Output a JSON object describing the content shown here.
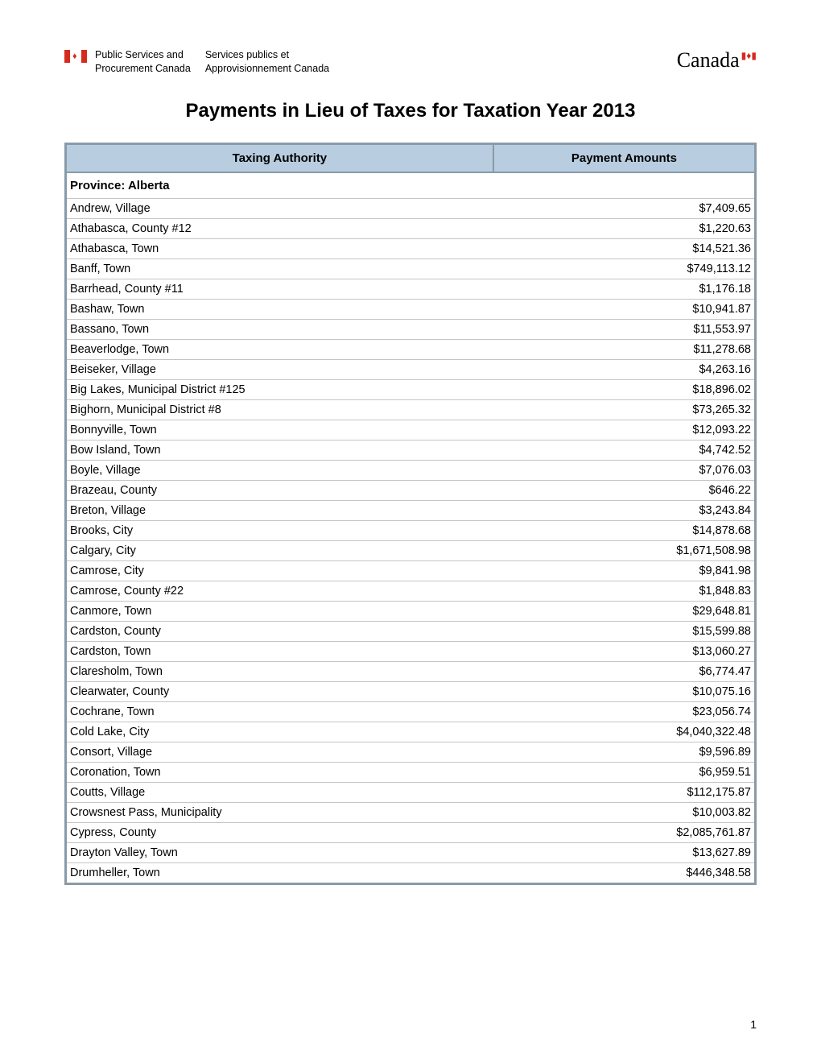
{
  "header": {
    "dept_en_line1": "Public Services and",
    "dept_en_line2": "Procurement Canada",
    "dept_fr_line1": "Services publics et",
    "dept_fr_line2": "Approvisionnement Canada",
    "wordmark": "Canada"
  },
  "title": "Payments in Lieu of Taxes for Taxation Year 2013",
  "table": {
    "columns": [
      "Taxing Authority",
      "Payment Amounts"
    ],
    "header_bg": "#b8cde0",
    "border_color": "#8a9aa8",
    "row_border_color": "#c5c5c5",
    "province_label": "Province:  Alberta",
    "rows": [
      {
        "authority": "Andrew, Village",
        "amount": "$7,409.65"
      },
      {
        "authority": "Athabasca, County #12",
        "amount": "$1,220.63"
      },
      {
        "authority": "Athabasca, Town",
        "amount": "$14,521.36"
      },
      {
        "authority": "Banff, Town",
        "amount": "$749,113.12"
      },
      {
        "authority": "Barrhead, County #11",
        "amount": "$1,176.18"
      },
      {
        "authority": "Bashaw, Town",
        "amount": "$10,941.87"
      },
      {
        "authority": "Bassano, Town",
        "amount": "$11,553.97"
      },
      {
        "authority": "Beaverlodge, Town",
        "amount": "$11,278.68"
      },
      {
        "authority": "Beiseker, Village",
        "amount": "$4,263.16"
      },
      {
        "authority": "Big Lakes, Municipal District #125",
        "amount": "$18,896.02"
      },
      {
        "authority": "Bighorn, Municipal District #8",
        "amount": "$73,265.32"
      },
      {
        "authority": "Bonnyville, Town",
        "amount": "$12,093.22"
      },
      {
        "authority": "Bow Island, Town",
        "amount": "$4,742.52"
      },
      {
        "authority": "Boyle, Village",
        "amount": "$7,076.03"
      },
      {
        "authority": "Brazeau, County",
        "amount": "$646.22"
      },
      {
        "authority": "Breton, Village",
        "amount": "$3,243.84"
      },
      {
        "authority": "Brooks, City",
        "amount": "$14,878.68"
      },
      {
        "authority": "Calgary, City",
        "amount": "$1,671,508.98"
      },
      {
        "authority": "Camrose, City",
        "amount": "$9,841.98"
      },
      {
        "authority": "Camrose, County #22",
        "amount": "$1,848.83"
      },
      {
        "authority": "Canmore, Town",
        "amount": "$29,648.81"
      },
      {
        "authority": "Cardston, County",
        "amount": "$15,599.88"
      },
      {
        "authority": "Cardston, Town",
        "amount": "$13,060.27"
      },
      {
        "authority": "Claresholm, Town",
        "amount": "$6,774.47"
      },
      {
        "authority": "Clearwater, County",
        "amount": "$10,075.16"
      },
      {
        "authority": "Cochrane, Town",
        "amount": "$23,056.74"
      },
      {
        "authority": "Cold Lake, City",
        "amount": "$4,040,322.48"
      },
      {
        "authority": "Consort, Village",
        "amount": "$9,596.89"
      },
      {
        "authority": "Coronation, Town",
        "amount": "$6,959.51"
      },
      {
        "authority": "Coutts, Village",
        "amount": "$112,175.87"
      },
      {
        "authority": "Crowsnest Pass, Municipality",
        "amount": "$10,003.82"
      },
      {
        "authority": "Cypress, County",
        "amount": "$2,085,761.87"
      },
      {
        "authority": "Drayton Valley, Town",
        "amount": "$13,627.89"
      },
      {
        "authority": "Drumheller, Town",
        "amount": "$446,348.58"
      }
    ]
  },
  "page_number": "1"
}
